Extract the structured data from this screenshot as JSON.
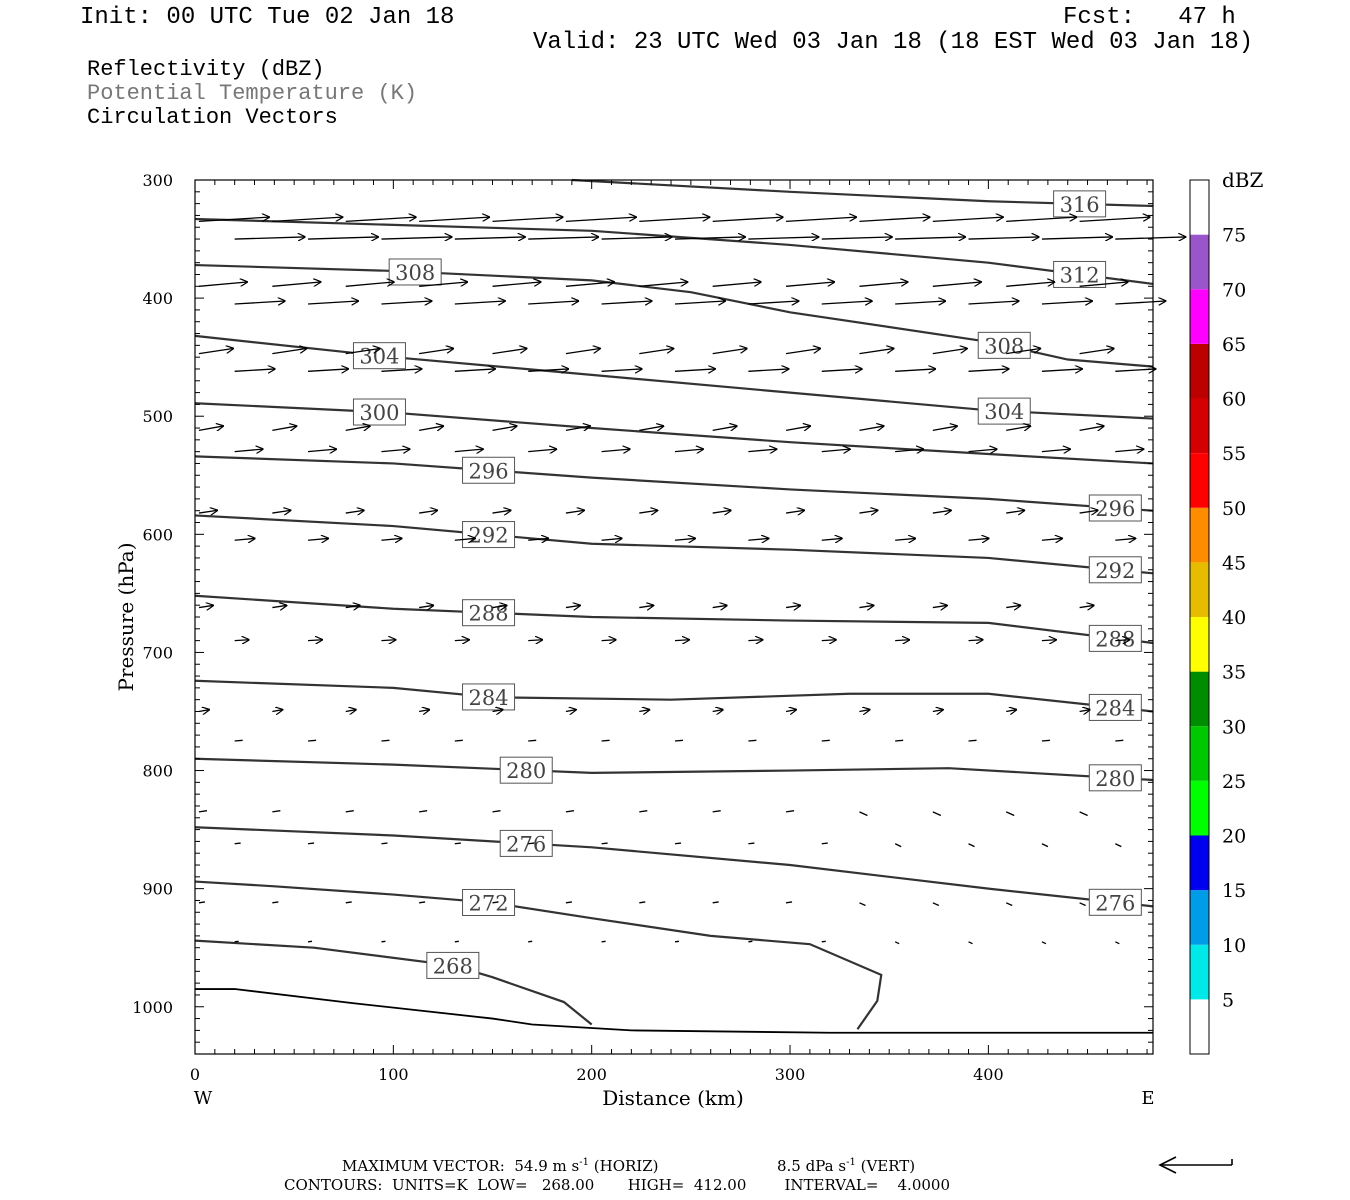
{
  "header": {
    "init": "Init: 00 UTC Tue 02 Jan 18",
    "fcst": "Fcst:   47 h",
    "valid": "Valid: 23 UTC Wed 03 Jan 18 (18 EST Wed 03 Jan 18)"
  },
  "fields": [
    {
      "label": "Reflectivity (dBZ)",
      "color": "#000000"
    },
    {
      "label": "Potential Temperature (K)",
      "color": "#777777"
    },
    {
      "label": "Circulation Vectors",
      "color": "#000000"
    }
  ],
  "chart_data": {
    "type": "cross-section",
    "xlabel": "Distance (km)",
    "ylabel": "Pressure (hPa)",
    "xlim": [
      0,
      483
    ],
    "ylim": [
      300,
      1040
    ],
    "y_scale": "linear, inverted",
    "x_ticks": [
      "0",
      "100",
      "200",
      "300",
      "400"
    ],
    "x_tick_values": [
      0,
      100,
      200,
      300,
      400
    ],
    "y_ticks": [
      "300",
      "400",
      "500",
      "600",
      "700",
      "800",
      "900",
      "1000"
    ],
    "y_tick_values": [
      300,
      400,
      500,
      600,
      700,
      800,
      900,
      1000
    ],
    "x_end_labels": {
      "left": "W",
      "right": "E"
    },
    "terrain_pressure": [
      {
        "x": 0,
        "p": 985
      },
      {
        "x": 20,
        "p": 985
      },
      {
        "x": 80,
        "p": 997
      },
      {
        "x": 150,
        "p": 1010
      },
      {
        "x": 170,
        "p": 1015
      },
      {
        "x": 220,
        "p": 1020
      },
      {
        "x": 320,
        "p": 1022
      },
      {
        "x": 483,
        "p": 1022
      }
    ],
    "isentropes": [
      {
        "value": 268,
        "points": [
          {
            "x": 0,
            "p": 944
          },
          {
            "x": 60,
            "p": 950
          },
          {
            "x": 130,
            "p": 965
          },
          {
            "x": 150,
            "p": 975
          },
          {
            "x": 186,
            "p": 996
          },
          {
            "x": 200,
            "p": 1015
          }
        ],
        "label_x": 130
      },
      {
        "value": 272,
        "points": [
          {
            "x": 0,
            "p": 894
          },
          {
            "x": 40,
            "p": 898
          },
          {
            "x": 100,
            "p": 905
          },
          {
            "x": 150,
            "p": 912
          },
          {
            "x": 200,
            "p": 925
          },
          {
            "x": 260,
            "p": 940
          },
          {
            "x": 310,
            "p": 947
          },
          {
            "x": 346,
            "p": 973
          },
          {
            "x": 344,
            "p": 995
          },
          {
            "x": 334,
            "p": 1019
          }
        ],
        "label_x": 148
      },
      {
        "value": 276,
        "points": [
          {
            "x": 0,
            "p": 848
          },
          {
            "x": 100,
            "p": 855
          },
          {
            "x": 200,
            "p": 865
          },
          {
            "x": 300,
            "p": 880
          },
          {
            "x": 400,
            "p": 900
          },
          {
            "x": 483,
            "p": 915
          }
        ],
        "label_x": 167
      },
      {
        "value": 276,
        "points": [
          {
            "x": 0,
            "p": 848
          },
          {
            "x": 483,
            "p": 915
          }
        ],
        "label_x": 464
      },
      {
        "value": 280,
        "points": [
          {
            "x": 0,
            "p": 790
          },
          {
            "x": 100,
            "p": 795
          },
          {
            "x": 200,
            "p": 802
          },
          {
            "x": 300,
            "p": 800
          },
          {
            "x": 380,
            "p": 798
          },
          {
            "x": 483,
            "p": 808
          }
        ],
        "label_x": 167
      },
      {
        "value": 280,
        "points": [
          {
            "x": 0,
            "p": 790
          },
          {
            "x": 483,
            "p": 808
          }
        ],
        "label_x": 464
      },
      {
        "value": 284,
        "points": [
          {
            "x": 0,
            "p": 724
          },
          {
            "x": 100,
            "p": 730
          },
          {
            "x": 150,
            "p": 738
          },
          {
            "x": 240,
            "p": 740
          },
          {
            "x": 330,
            "p": 735
          },
          {
            "x": 400,
            "p": 735
          },
          {
            "x": 483,
            "p": 750
          }
        ],
        "label_x": 148
      },
      {
        "value": 284,
        "points": [
          {
            "x": 0,
            "p": 724
          },
          {
            "x": 483,
            "p": 750
          }
        ],
        "label_x": 464
      },
      {
        "value": 288,
        "points": [
          {
            "x": 0,
            "p": 652
          },
          {
            "x": 100,
            "p": 663
          },
          {
            "x": 200,
            "p": 670
          },
          {
            "x": 300,
            "p": 673
          },
          {
            "x": 400,
            "p": 675
          },
          {
            "x": 483,
            "p": 692
          }
        ],
        "label_x": 148
      },
      {
        "value": 288,
        "points": [
          {
            "x": 0,
            "p": 652
          },
          {
            "x": 483,
            "p": 692
          }
        ],
        "label_x": 464
      },
      {
        "value": 292,
        "points": [
          {
            "x": 0,
            "p": 584
          },
          {
            "x": 100,
            "p": 593
          },
          {
            "x": 200,
            "p": 608
          },
          {
            "x": 300,
            "p": 613
          },
          {
            "x": 400,
            "p": 620
          },
          {
            "x": 483,
            "p": 633
          }
        ],
        "label_x": 148
      },
      {
        "value": 292,
        "points": [
          {
            "x": 0,
            "p": 584
          },
          {
            "x": 483,
            "p": 633
          }
        ],
        "label_x": 464
      },
      {
        "value": 296,
        "points": [
          {
            "x": 0,
            "p": 534
          },
          {
            "x": 100,
            "p": 540
          },
          {
            "x": 200,
            "p": 552
          },
          {
            "x": 300,
            "p": 562
          },
          {
            "x": 400,
            "p": 570
          },
          {
            "x": 483,
            "p": 580
          }
        ],
        "label_x": 148
      },
      {
        "value": 296,
        "points": [
          {
            "x": 0,
            "p": 534
          },
          {
            "x": 483,
            "p": 580
          }
        ],
        "label_x": 464
      },
      {
        "value": 300,
        "points": [
          {
            "x": 0,
            "p": 489
          },
          {
            "x": 100,
            "p": 497
          },
          {
            "x": 200,
            "p": 510
          },
          {
            "x": 300,
            "p": 522
          },
          {
            "x": 400,
            "p": 532
          },
          {
            "x": 483,
            "p": 540
          }
        ],
        "label_x": 93
      },
      {
        "value": 304,
        "points": [
          {
            "x": 0,
            "p": 432
          },
          {
            "x": 100,
            "p": 450
          },
          {
            "x": 200,
            "p": 465
          },
          {
            "x": 300,
            "p": 480
          },
          {
            "x": 400,
            "p": 495
          },
          {
            "x": 483,
            "p": 502
          }
        ],
        "label_x": 93
      },
      {
        "value": 304,
        "points": [
          {
            "x": 0,
            "p": 432
          },
          {
            "x": 483,
            "p": 502
          }
        ],
        "label_x": 408
      },
      {
        "value": 308,
        "points": [
          {
            "x": 0,
            "p": 372
          },
          {
            "x": 100,
            "p": 377
          },
          {
            "x": 200,
            "p": 385
          },
          {
            "x": 250,
            "p": 395
          },
          {
            "x": 300,
            "p": 412
          },
          {
            "x": 400,
            "p": 437
          },
          {
            "x": 440,
            "p": 452
          },
          {
            "x": 483,
            "p": 458
          }
        ],
        "label_x": 111
      },
      {
        "value": 308,
        "points": [
          {
            "x": 0,
            "p": 372
          },
          {
            "x": 483,
            "p": 458
          }
        ],
        "label_x": 408
      },
      {
        "value": 312,
        "points": [
          {
            "x": 0,
            "p": 333
          },
          {
            "x": 100,
            "p": 338
          },
          {
            "x": 200,
            "p": 343
          },
          {
            "x": 300,
            "p": 355
          },
          {
            "x": 400,
            "p": 370
          },
          {
            "x": 483,
            "p": 388
          }
        ],
        "label_x": 446
      },
      {
        "value": 316,
        "points": [
          {
            "x": 190,
            "p": 300
          },
          {
            "x": 300,
            "p": 310
          },
          {
            "x": 400,
            "p": 318
          },
          {
            "x": 483,
            "p": 322
          }
        ],
        "label_x": 446
      }
    ],
    "contour_info": "CONTOURS:  UNITS=K  LOW=   268.00       HIGH=  412.00        INTERVAL=    4.0000",
    "reflectivity_colorbar": {
      "title": "dBZ",
      "levels": [
        "5",
        "10",
        "15",
        "20",
        "25",
        "30",
        "35",
        "40",
        "45",
        "50",
        "55",
        "60",
        "65",
        "70",
        "75"
      ],
      "colors": [
        "#00e8e8",
        "#009ce8",
        "#0000f0",
        "#00ff00",
        "#00c800",
        "#008c00",
        "#ffff00",
        "#e6bc00",
        "#ff8c00",
        "#ff0000",
        "#d40000",
        "#bc0000",
        "#ff00ff",
        "#9955c9",
        "#ffffff"
      ]
    },
    "vectors": {
      "max_vector_label": "MAXIMUM VECTOR:",
      "max_horiz": "54.9 m s",
      "max_horiz_units": "(HORIZ)",
      "max_vert": "8.5 dPa s",
      "max_vert_units": "(VERT)",
      "note": "arrows shown as circulation vectors; scale arrow at bottom right"
    }
  }
}
